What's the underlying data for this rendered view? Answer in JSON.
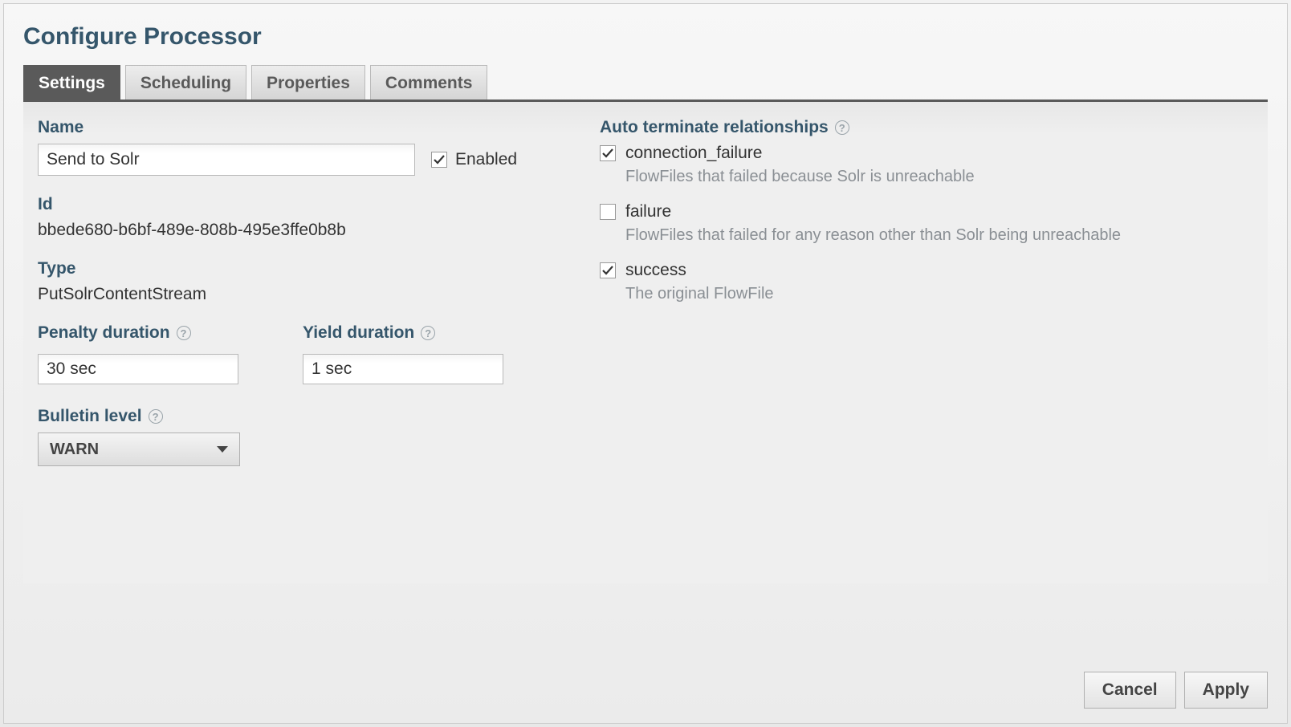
{
  "dialog": {
    "title": "Configure Processor"
  },
  "tabs": {
    "settings": "Settings",
    "scheduling": "Scheduling",
    "properties": "Properties",
    "comments": "Comments"
  },
  "labels": {
    "name": "Name",
    "enabled": "Enabled",
    "id": "Id",
    "type": "Type",
    "penalty": "Penalty duration",
    "yield": "Yield duration",
    "bulletin": "Bulletin level",
    "auto_terminate": "Auto terminate relationships"
  },
  "values": {
    "name": "Send to Solr",
    "id": "bbede680-b6bf-489e-808b-495e3ffe0b8b",
    "type": "PutSolrContentStream",
    "penalty": "30 sec",
    "yield": "1 sec",
    "bulletin": "WARN"
  },
  "relationships": [
    {
      "name": "connection_failure",
      "checked": true,
      "desc": "FlowFiles that failed because Solr is unreachable"
    },
    {
      "name": "failure",
      "checked": false,
      "desc": "FlowFiles that failed for any reason other than Solr being unreachable"
    },
    {
      "name": "success",
      "checked": true,
      "desc": "The original FlowFile"
    }
  ],
  "buttons": {
    "cancel": "Cancel",
    "apply": "Apply"
  },
  "help_glyph": "?"
}
